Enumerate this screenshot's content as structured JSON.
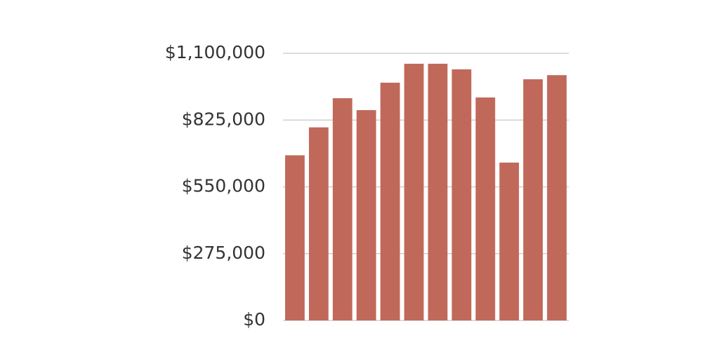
{
  "chart_data": {
    "type": "bar",
    "categories": [
      null,
      null,
      null,
      null,
      null,
      null,
      null,
      null,
      null,
      null,
      null,
      null
    ],
    "values": [
      680000,
      795000,
      915000,
      866000,
      979000,
      1057000,
      1057000,
      1034000,
      918000,
      650000,
      993000,
      1010000
    ],
    "color": "#c0695a",
    "ylim": [
      0,
      1100000
    ],
    "yticks": [
      {
        "value": 0,
        "label": "$0"
      },
      {
        "value": 275000,
        "label": "$275,000"
      },
      {
        "value": 550000,
        "label": "$550,000"
      },
      {
        "value": 825000,
        "label": "$825,000"
      },
      {
        "value": 1100000,
        "label": "$1,100,000"
      }
    ],
    "grid": true
  }
}
